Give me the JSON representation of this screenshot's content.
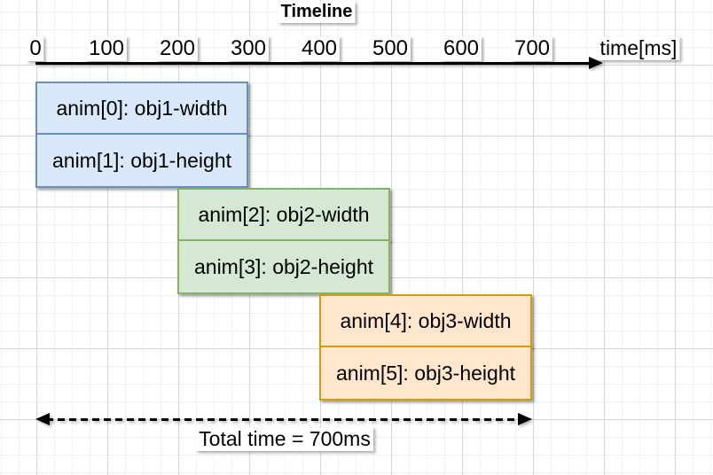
{
  "title": "Timeline",
  "axis": {
    "unit_label": "time[ms]",
    "ticks": [
      "0",
      "100",
      "200",
      "300",
      "400",
      "500",
      "600",
      "700"
    ],
    "tick_values": [
      0,
      100,
      200,
      300,
      400,
      500,
      600,
      700
    ]
  },
  "bars": [
    {
      "label": "anim[0]: obj1-width",
      "group": "blue",
      "row": 0,
      "start_ms": 0,
      "end_ms": 300
    },
    {
      "label": "anim[1]: obj1-height",
      "group": "blue",
      "row": 1,
      "start_ms": 0,
      "end_ms": 300
    },
    {
      "label": "anim[2]: obj2-width",
      "group": "green",
      "row": 2,
      "start_ms": 200,
      "end_ms": 500
    },
    {
      "label": "anim[3]: obj2-height",
      "group": "green",
      "row": 3,
      "start_ms": 200,
      "end_ms": 500
    },
    {
      "label": "anim[4]: obj3-width",
      "group": "orange",
      "row": 4,
      "start_ms": 400,
      "end_ms": 700
    },
    {
      "label": "anim[5]: obj3-height",
      "group": "orange",
      "row": 5,
      "start_ms": 400,
      "end_ms": 700
    }
  ],
  "footer": {
    "label": "Total time = 700ms",
    "span_start_ms": 0,
    "span_end_ms": 700
  },
  "colors": {
    "blue_fill": "#dae8fc",
    "blue_stroke": "#6c8ebf",
    "green_fill": "#d5e8d4",
    "green_stroke": "#82b366",
    "orange_fill": "#ffe6cc",
    "orange_stroke": "#d79b00",
    "axis": "#000000",
    "grid_minor": "#f0f0f0",
    "grid_major": "#d5d5d5"
  },
  "chart_data": {
    "type": "bar",
    "subtype": "gantt-timeline",
    "title": "Timeline",
    "xlabel": "time[ms]",
    "xlim": [
      0,
      700
    ],
    "x_ticks": [
      0,
      100,
      200,
      300,
      400,
      500,
      600,
      700
    ],
    "series": [
      {
        "name": "anim[0]: obj1-width",
        "start": 0,
        "end": 300,
        "color": "#dae8fc"
      },
      {
        "name": "anim[1]: obj1-height",
        "start": 0,
        "end": 300,
        "color": "#dae8fc"
      },
      {
        "name": "anim[2]: obj2-width",
        "start": 200,
        "end": 500,
        "color": "#d5e8d4"
      },
      {
        "name": "anim[3]: obj2-height",
        "start": 200,
        "end": 500,
        "color": "#d5e8d4"
      },
      {
        "name": "anim[4]: obj3-width",
        "start": 400,
        "end": 700,
        "color": "#ffe6cc"
      },
      {
        "name": "anim[5]: obj3-height",
        "start": 400,
        "end": 700,
        "color": "#ffe6cc"
      }
    ],
    "annotations": [
      "Total time = 700ms"
    ],
    "grid": true
  }
}
